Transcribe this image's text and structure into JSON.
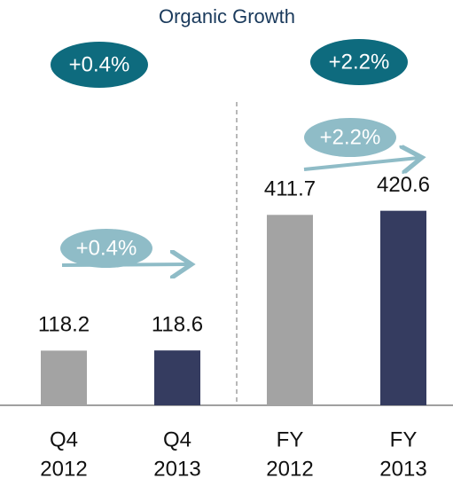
{
  "chart_data": {
    "type": "bar",
    "title": "Organic Growth",
    "categories": [
      [
        "Q4",
        "2012"
      ],
      [
        "Q4",
        "2013"
      ],
      [
        "FY",
        "2012"
      ],
      [
        "FY",
        "2013"
      ]
    ],
    "values": [
      118.2,
      118.6,
      411.7,
      420.6
    ],
    "colors": [
      "#a3a3a3",
      "#353c60",
      "#a3a3a3",
      "#353c60"
    ],
    "annotations": [
      {
        "text": "+0.4%",
        "style": "dark"
      },
      {
        "text": "+2.2%",
        "style": "dark"
      },
      {
        "text": "+0.4%",
        "style": "light"
      },
      {
        "text": "+2.2%",
        "style": "light"
      }
    ]
  }
}
